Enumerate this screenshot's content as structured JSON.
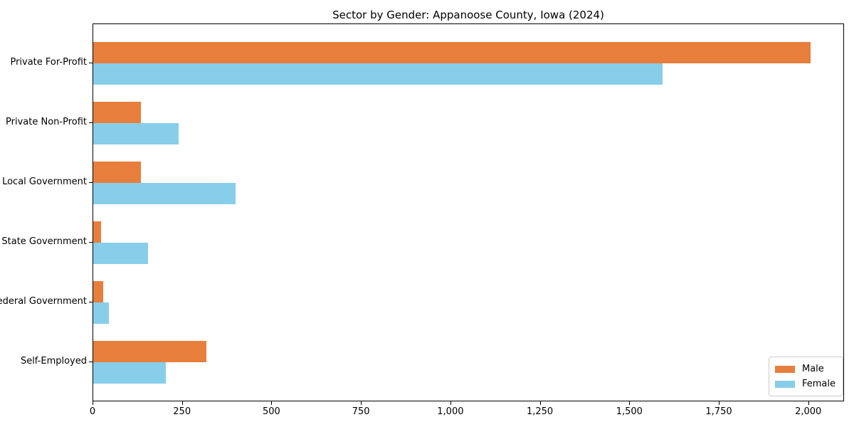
{
  "chart_data": {
    "type": "bar",
    "orientation": "horizontal",
    "title": "Sector by Gender: Appanoose County, Iowa (2024)",
    "categories": [
      "Private For-Profit",
      "Private Non-Profit",
      "Local Government",
      "State Government",
      "Federal Government",
      "Self-Employed"
    ],
    "series": [
      {
        "name": "Male",
        "color": "#E87E3C",
        "values": [
          2005,
          133,
          133,
          21,
          28,
          317
        ]
      },
      {
        "name": "Female",
        "color": "#87CEEB",
        "values": [
          1590,
          239,
          398,
          154,
          44,
          202
        ]
      }
    ],
    "xlabel": "",
    "ylabel": "",
    "xlim": [
      0,
      2100
    ],
    "x_ticks": [
      0,
      250,
      500,
      750,
      1000,
      1250,
      1500,
      1750,
      2000
    ],
    "x_tick_labels": [
      "0",
      "250",
      "500",
      "750",
      "1,000",
      "1,250",
      "1,500",
      "1,750",
      "2,000"
    ],
    "grid": false,
    "legend_position": "lower right"
  }
}
